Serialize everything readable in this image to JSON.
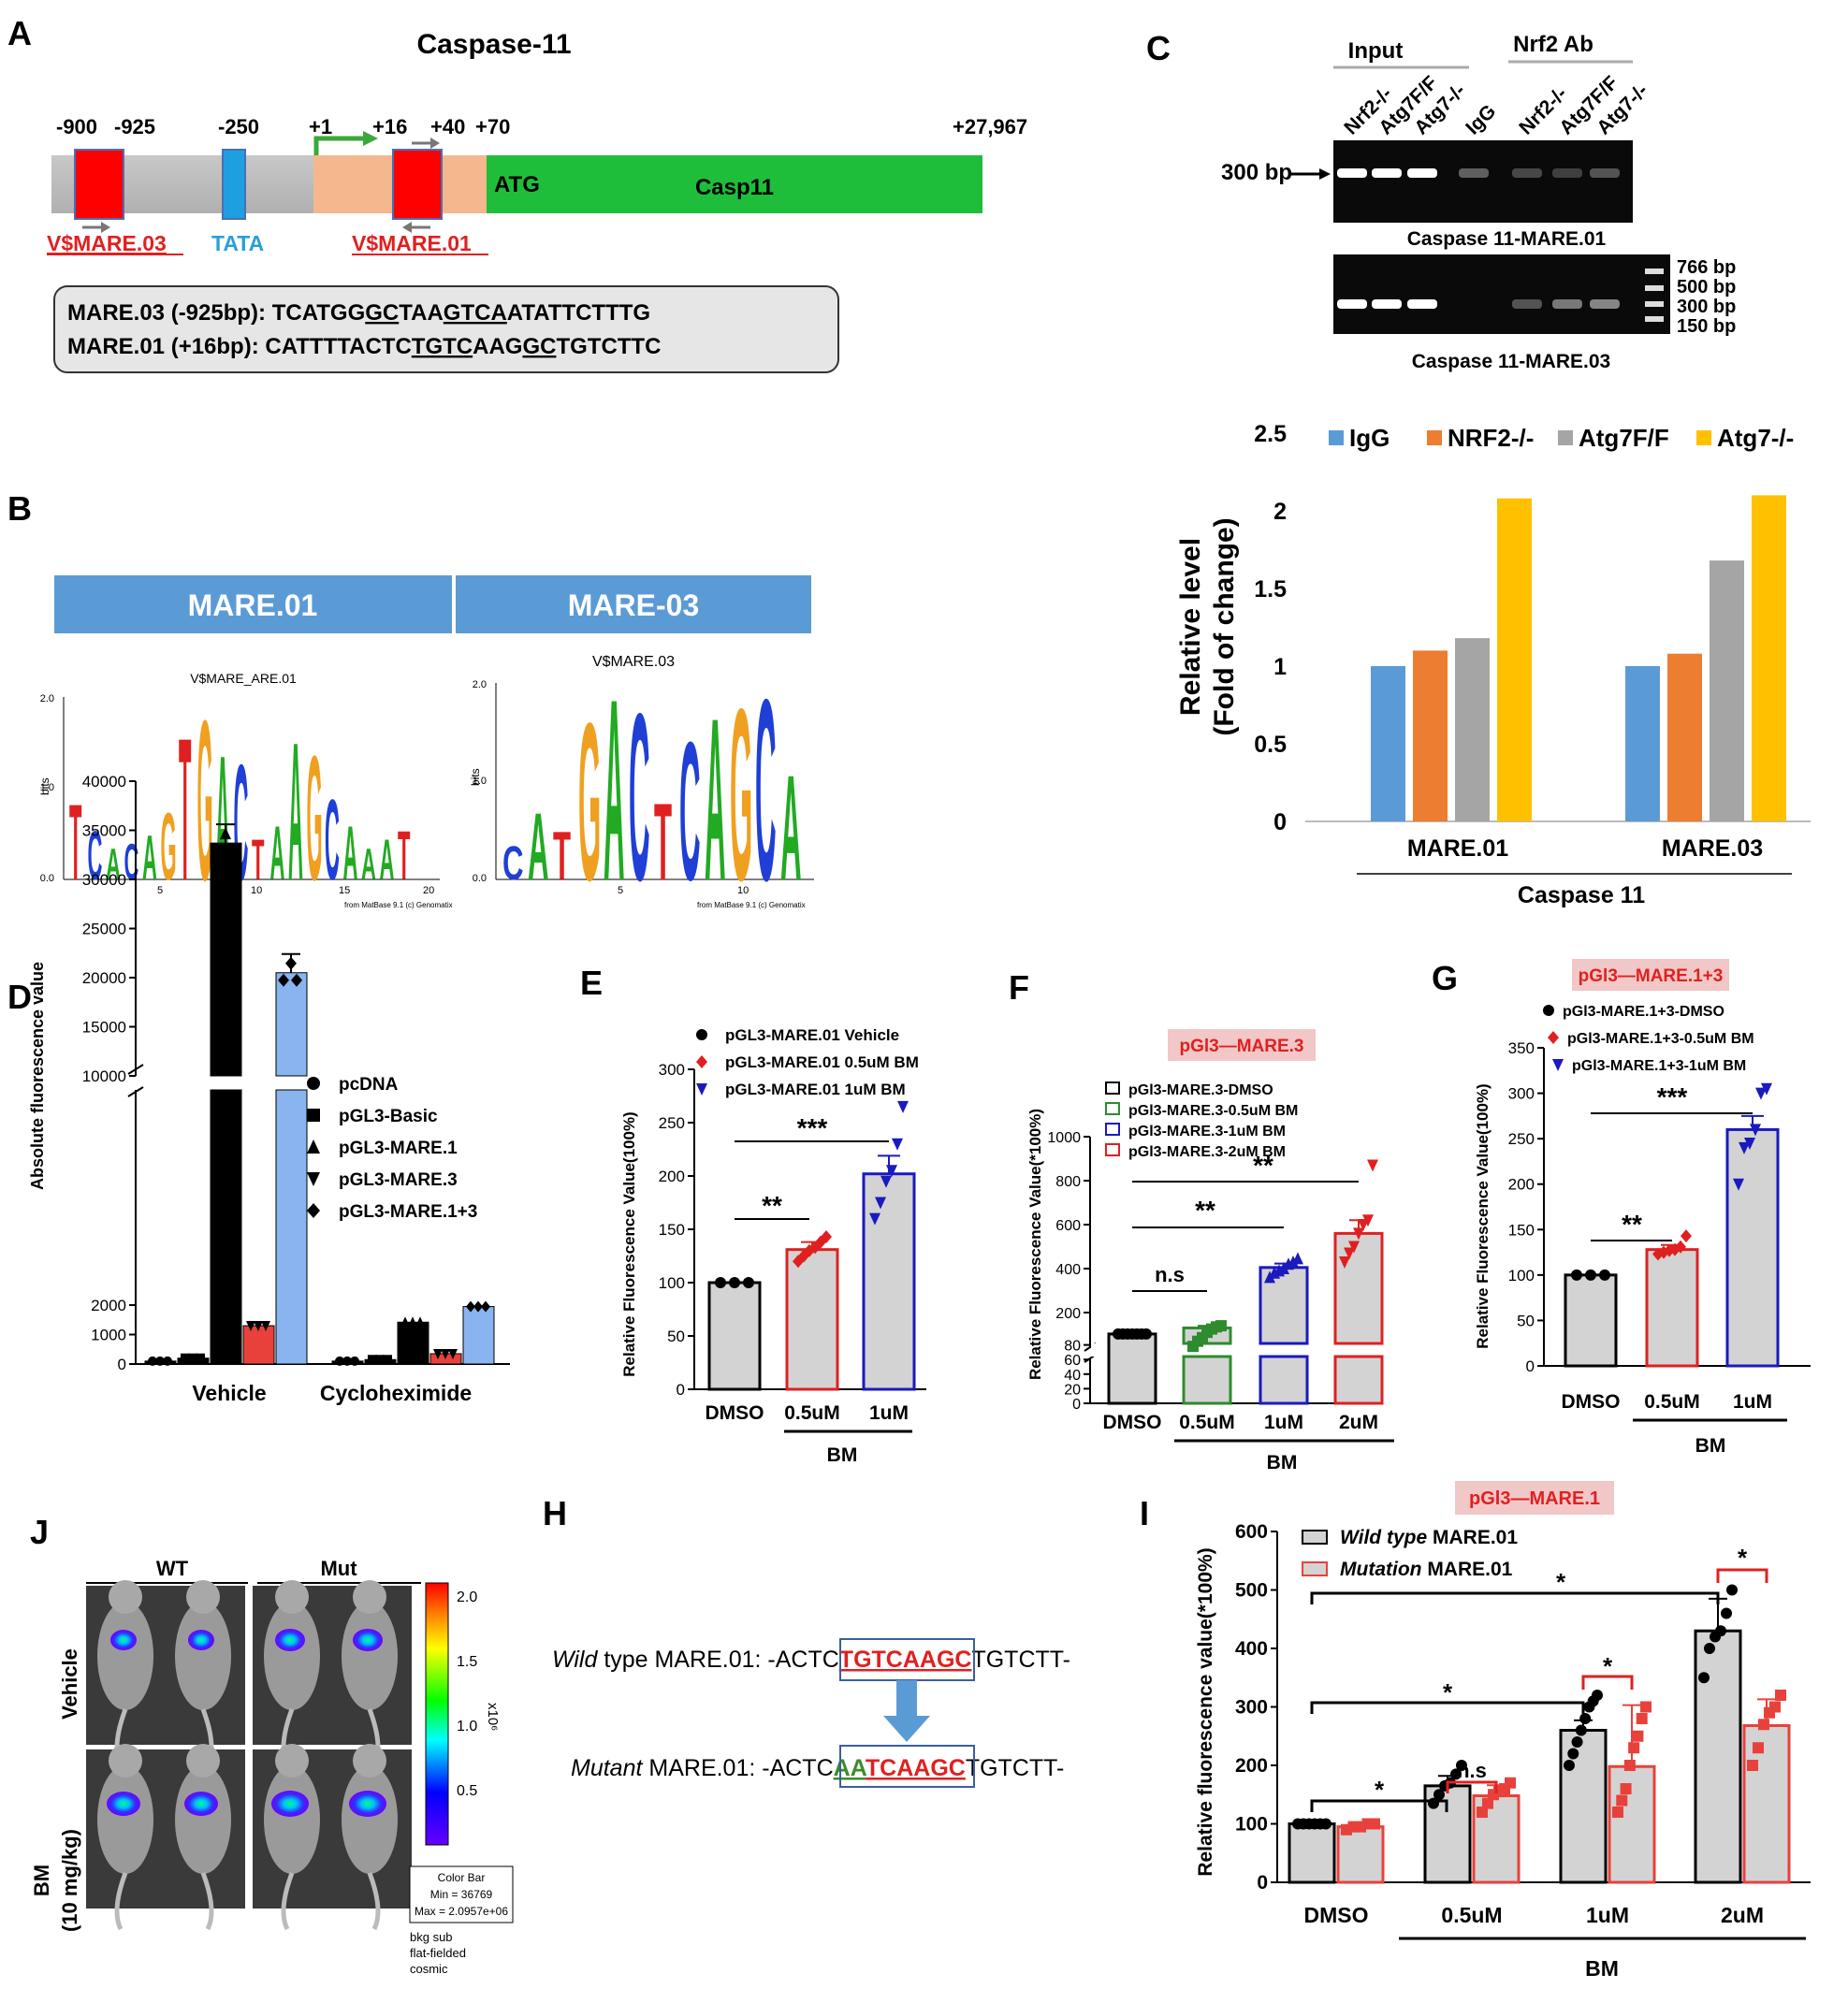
{
  "colors": {
    "wt": "#000000",
    "mut": "#e8413b",
    "blue": "#1a1abf",
    "green": "#2e8b2e",
    "gray": "#d3d3d3",
    "ylw": "#ffc000",
    "orange": "#ed7d31",
    "ltblue": "#5b9bd5",
    "midgray": "#a5a5a5",
    "gelbg": "#0a0a0a"
  },
  "panelA": {
    "letter": "A",
    "title": "Caspase-11",
    "pos": [
      "-900",
      "-925",
      "-250",
      "+1",
      "+16",
      "+40",
      "+70",
      "+27,967"
    ],
    "atg": "ATG",
    "gene": "Casp11",
    "mare03": "V$MARE.03",
    "tata": "TATA",
    "mare01": "V$MARE.01",
    "seq1_label": "MARE.03 (-925bp): ",
    "seq1_a": "TCATGG",
    "seq1_b": "GC",
    "seq1_c": "TAA",
    "seq1_d": "GTCA",
    "seq1_e": "ATATTCTTTG",
    "seq2_label": "MARE.01 (+16bp): ",
    "seq2_a": "CATTTTACTC",
    "seq2_b": "TGTC",
    "seq2_c": "AAG",
    "seq2_d": "GC",
    "seq2_e": "TGTCTTC"
  },
  "panelB": {
    "letter": "B",
    "h1": "MARE.01",
    "h2": "MARE-03",
    "t1": "V$MARE_ARE.01",
    "t2": "V$MARE.03",
    "ylab": "bits",
    "credit": "from MatBase 9.1 (c) Genomatix",
    "yt": [
      "2.0",
      "1.0",
      "0.0"
    ],
    "xt1": [
      "5",
      "10",
      "15",
      "20"
    ],
    "xt2": [
      "5",
      "10"
    ],
    "logo1": "TCACAGTGACTAAGCAAAT",
    "logo2": "CATGACTCAGCA"
  },
  "panelC": {
    "letter": "C",
    "input": "Input",
    "nrf2ab": "Nrf2 Ab",
    "lanes": [
      "Nrf2-/-",
      "Atg7F/F",
      "Atg7-/-",
      "IgG",
      "Nrf2-/-",
      "Atg7F/F",
      "Atg7-/-"
    ],
    "bp300": "300 bp",
    "gel1": "Caspase 11-MARE.01",
    "gel2": "Caspase 11-MARE.03",
    "ladder": [
      "766 bp",
      "500 bp",
      "300 bp",
      "150 bp"
    ]
  },
  "panelD": {
    "letter": "D",
    "ylabel": "Absolute fluorescence value",
    "ticks_top": [
      "40000",
      "35000",
      "30000",
      "25000",
      "20000",
      "15000",
      "10000"
    ],
    "ticks_bot": [
      "2000",
      "1000",
      "0"
    ],
    "legend": [
      "pcDNA",
      "pGL3-Basic",
      "pGL3-MARE.1",
      "pGL3-MARE.3",
      "pGL3-MARE.1+3"
    ],
    "groups": [
      "Vehicle",
      "Cycloheximide"
    ]
  },
  "panelE": {
    "letter": "E",
    "ylabel": "Relative Fluorescence Value(100%)",
    "ticks": [
      "0",
      "50",
      "100",
      "150",
      "200",
      "250",
      "300"
    ],
    "legend": [
      "pGL3-MARE.01 Vehicle",
      "pGL3-MARE.01 0.5uM BM",
      "pGL3-MARE.01 1uM BM"
    ],
    "cats": [
      "DMSO",
      "0.5uM",
      "1uM"
    ],
    "bm": "BM",
    "sig1": "**",
    "sig2": "***"
  },
  "panelF": {
    "letter": "F",
    "badge": "pGl3—MARE.3",
    "ylabel": "Relative Fluorescence Value(*100%)",
    "ticks_top": [
      "200",
      "400",
      "600",
      "800",
      "1000"
    ],
    "ticks_bot": [
      "0",
      "20",
      "40",
      "60",
      "80"
    ],
    "legend": [
      "pGl3-MARE.3-DMSO",
      "pGl3-MARE.3-0.5uM BM",
      "pGl3-MARE.3-1uM BM",
      "pGl3-MARE.3-2uM BM"
    ],
    "cats": [
      "DMSO",
      "0.5uM",
      "1uM",
      "2uM"
    ],
    "bm": "BM",
    "sig_ns": "n.s",
    "sig1": "**",
    "sig2": "**"
  },
  "panelG": {
    "letter": "G",
    "badge": "pGl3—MARE.1+3",
    "ylabel": "Relative Fluorescence Value(100%)",
    "ticks": [
      "0",
      "50",
      "100",
      "150",
      "200",
      "250",
      "300",
      "350"
    ],
    "legend": [
      "pGl3-MARE.1+3-DMSO",
      "pGl3-MARE.1+3-0.5uM BM",
      "pGl3-MARE.1+3-1uM BM"
    ],
    "cats": [
      "DMSO",
      "0.5uM",
      "1uM"
    ],
    "bm": "BM",
    "sig1": "**",
    "sig2": "***"
  },
  "panelH": {
    "letter": "H",
    "wt_i": "Wild",
    "wt_r": " type MARE.01: -ACTC",
    "wt_box": "TGTCAAGC",
    "wt_end": "TGTCTT-",
    "mu_i": "Mutant",
    "mu_r": " MARE.01: -ACTC",
    "mu_box1": "AA",
    "mu_box2": "TCAAGC",
    "mu_end": "TGTCTT-"
  },
  "panelI": {
    "letter": "I",
    "badge": "pGl3—MARE.1",
    "ylabel": "Relative fluorescence value(*100%)",
    "ticks": [
      "0",
      "100",
      "200",
      "300",
      "400",
      "500",
      "600"
    ],
    "leg1_i": "Wild type",
    "leg1_r": " MARE.01",
    "leg2_i": "Mutation",
    "leg2_r": " MARE.01",
    "cats": [
      "DMSO",
      "0.5uM",
      "1uM",
      "2uM"
    ],
    "bm": "BM",
    "star": "*",
    "ns": "n.s"
  },
  "panelJ": {
    "letter": "J",
    "wt": "WT",
    "mut": "Mut",
    "vehicle": "Vehicle",
    "bm": "BM",
    "dose": "(10 mg/kg)",
    "cb_ticks": [
      "2.0",
      "1.5",
      "1.0",
      "0.5"
    ],
    "x10": "x10⁶",
    "cb1": "Color Bar",
    "cb2": "Min = 36769",
    "cb3": "Max = 2.0957e+06",
    "note1": "bkg sub",
    "note2": "flat-fielded",
    "note3": "cosmic"
  },
  "chart_data": [
    {
      "panel": "C",
      "type": "bar",
      "categories": [
        "MARE.01",
        "MARE.03"
      ],
      "group_label": "Caspase 11",
      "ylabel": "Relative level (Fold  of change)",
      "ylim": [
        0,
        2.5
      ],
      "yticks": [
        "0",
        "0.5",
        "1",
        "1.5",
        "2",
        "2.5"
      ],
      "series": [
        {
          "name": "IgG",
          "values": [
            1.0,
            1.0
          ]
        },
        {
          "name": "NRF2-/-",
          "values": [
            1.1,
            1.08
          ]
        },
        {
          "name": "Atg7F/F",
          "values": [
            1.18,
            1.68
          ]
        },
        {
          "name": "Atg7-/-",
          "values": [
            2.08,
            2.1
          ]
        }
      ]
    },
    {
      "panel": "D",
      "type": "bar",
      "categories": [
        "Vehicle",
        "Cycloheximide"
      ],
      "ylim": [
        0,
        40000
      ],
      "series": [
        {
          "name": "pcDNA",
          "values": [
            100,
            100
          ]
        },
        {
          "name": "pGL3-Basic",
          "values": [
            200,
            150
          ]
        },
        {
          "name": "pGL3-MARE.1",
          "values": [
            33700,
            1420
          ]
        },
        {
          "name": "pGL3-MARE.3",
          "values": [
            1300,
            350
          ]
        },
        {
          "name": "pGL3-MARE.1+3",
          "values": [
            20500,
            1950
          ]
        }
      ]
    },
    {
      "panel": "E",
      "type": "bar",
      "categories": [
        "DMSO",
        "0.5uM",
        "1uM"
      ],
      "values": [
        100,
        131,
        202
      ],
      "sem": [
        0,
        7,
        17
      ],
      "ylim": [
        0,
        300
      ],
      "points": [
        [
          100,
          100,
          100
        ],
        [
          120,
          125,
          130,
          133,
          138,
          143
        ],
        [
          160,
          175,
          195,
          205,
          230,
          265
        ]
      ]
    },
    {
      "panel": "F",
      "type": "bar",
      "categories": [
        "DMSO",
        "0.5uM",
        "1uM",
        "2uM"
      ],
      "values": [
        95,
        130,
        405,
        560
      ],
      "sem": [
        0,
        10,
        18,
        60
      ],
      "ylim": [
        0,
        1000
      ],
      "points": [
        [
          95,
          95,
          95,
          95,
          95,
          95,
          95
        ],
        [
          78,
          85,
          90,
          110,
          125,
          135,
          140
        ],
        [
          360,
          380,
          390,
          400,
          420,
          430,
          445
        ],
        [
          430,
          470,
          500,
          560,
          600,
          620,
          870
        ]
      ]
    },
    {
      "panel": "G",
      "type": "bar",
      "categories": [
        "DMSO",
        "0.5uM",
        "1uM"
      ],
      "values": [
        100,
        128,
        260
      ],
      "sem": [
        0,
        5,
        15
      ],
      "ylim": [
        0,
        350
      ],
      "points": [
        [
          100,
          100,
          100
        ],
        [
          123,
          125,
          127,
          128,
          131,
          143
        ],
        [
          200,
          240,
          245,
          260,
          300,
          305
        ]
      ]
    },
    {
      "panel": "I",
      "type": "bar",
      "categories": [
        "DMSO",
        "0.5uM",
        "1uM",
        "2uM"
      ],
      "ylim": [
        0,
        600
      ],
      "series": [
        {
          "name": "Wild type MARE.01",
          "values": [
            100,
            165,
            260,
            430
          ],
          "sem": [
            0,
            17,
            17,
            55
          ],
          "points": [
            [
              100,
              100,
              100,
              100,
              100,
              100
            ],
            [
              135,
              150,
              165,
              170,
              185,
              200
            ],
            [
              200,
              220,
              240,
              260,
              280,
              300,
              310,
              320
            ],
            [
              350,
              400,
              420,
              430,
              460,
              500
            ]
          ]
        },
        {
          "name": "Mutation MARE.01",
          "values": [
            95,
            148,
            198,
            268
          ],
          "sem": [
            0,
            18,
            105,
            45
          ],
          "points": [
            [
              90,
              95,
              95,
              100,
              100
            ],
            [
              120,
              135,
              150,
              155,
              160,
              170
            ],
            [
              120,
              140,
              160,
              200,
              230,
              250,
              280,
              300
            ],
            [
              200,
              230,
              270,
              290,
              300,
              320
            ]
          ]
        }
      ]
    }
  ]
}
